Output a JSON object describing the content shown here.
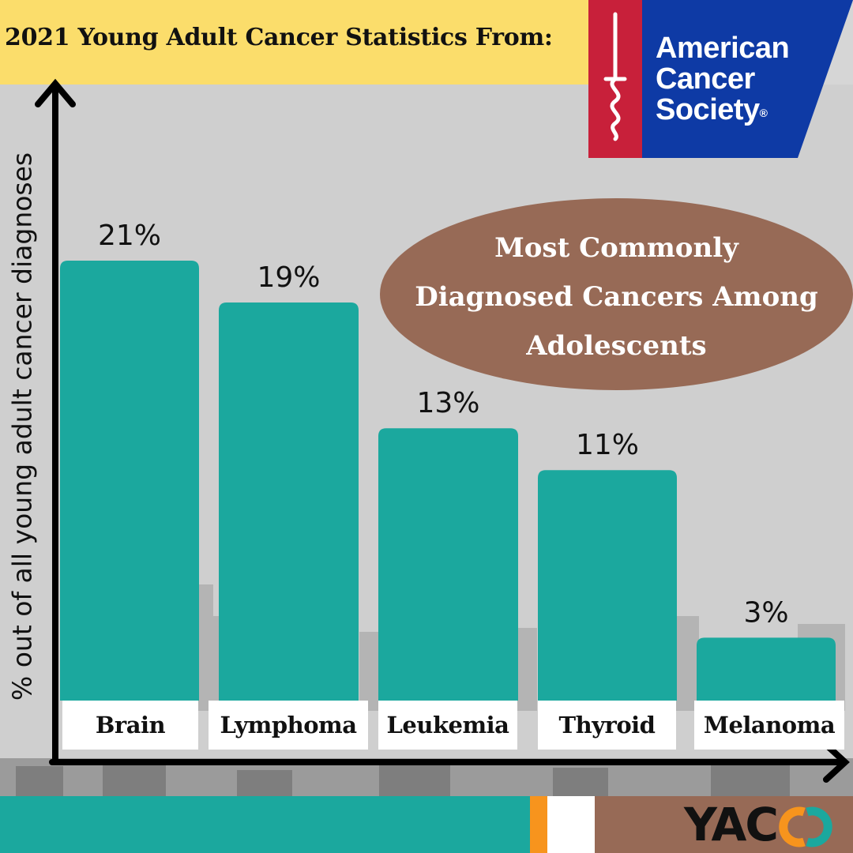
{
  "header": {
    "title": "2021 Young Adult Cancer Statistics From:"
  },
  "logo": {
    "lines": [
      "American",
      "Cancer",
      "Society"
    ],
    "registered": "®",
    "colors": {
      "red": "#c8203a",
      "blue": "#0e3aa5"
    }
  },
  "callout": {
    "lines": [
      "Most Commonly",
      "Diagnosed Cancers Among",
      "Adolescents"
    ]
  },
  "footer": {
    "brand": "YAC"
  },
  "colors": {
    "bar": "#1ba89e",
    "header": "#fbdd6b",
    "callout": "#976a56"
  },
  "chart_data": {
    "type": "bar",
    "title": "Most Commonly Diagnosed Cancers Among Adolescents",
    "ylabel": "% out of all young adult cancer diagnoses",
    "xlabel": "",
    "categories": [
      "Brain",
      "Lymphoma",
      "Leukemia",
      "Thyroid",
      "Melanoma"
    ],
    "values": [
      21,
      19,
      13,
      11,
      3
    ],
    "data_labels": [
      "21%",
      "19%",
      "13%",
      "11%",
      "3%"
    ],
    "grid": false
  }
}
